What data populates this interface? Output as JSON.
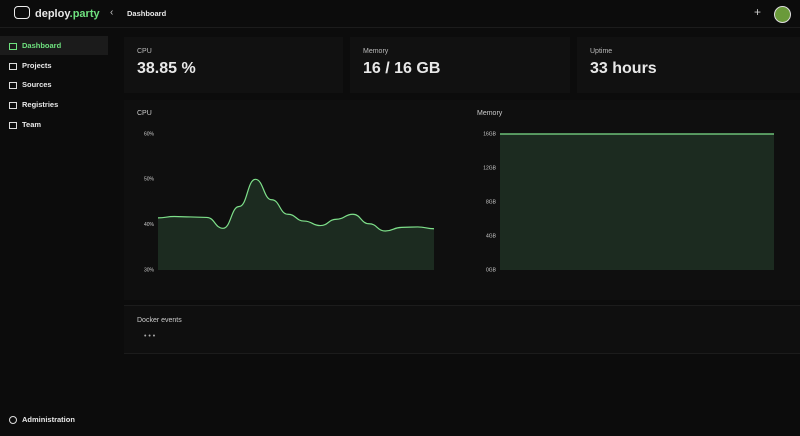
{
  "brand": {
    "name": "deploy",
    "suffix": ".party"
  },
  "header": {
    "title": "Dashboard"
  },
  "nav": [
    "Dashboard",
    "Projects",
    "Sources",
    "Registries",
    "Team"
  ],
  "footer_nav": "Administration",
  "stats": [
    {
      "label": "CPU",
      "value": "38.85 %"
    },
    {
      "label": "Memory",
      "value": "16 / 16 GB"
    },
    {
      "label": "Uptime",
      "value": "33 hours"
    }
  ],
  "events": {
    "title": "Docker events",
    "body": "• • •"
  },
  "chart_data": [
    {
      "type": "area",
      "title": "CPU",
      "color": "#7ee08a",
      "fill": "#1c2b20",
      "values": [
        41.5,
        41.8,
        41.7,
        41.6,
        39.2,
        44,
        50,
        45.5,
        42.3,
        40.8,
        39.8,
        41.2,
        42.3,
        40.2,
        38.6,
        39.4,
        39.5,
        39.1
      ],
      "ylim": [
        30,
        60
      ],
      "yticks": [
        {
          "value": 30,
          "label": "30%"
        },
        {
          "value": 40,
          "label": "40%"
        },
        {
          "value": 50,
          "label": "50%"
        },
        {
          "value": 60,
          "label": "60%"
        }
      ]
    },
    {
      "type": "area",
      "title": "Memory",
      "color": "#7ee08a",
      "fill": "#1c2b20",
      "values": [
        16,
        16,
        16,
        16,
        16,
        16,
        16,
        16,
        16,
        16
      ],
      "ylim": [
        0,
        16
      ],
      "yticks": [
        {
          "value": 0,
          "label": "0GB"
        },
        {
          "value": 4,
          "label": "4GB"
        },
        {
          "value": 8,
          "label": "8GB"
        },
        {
          "value": 12,
          "label": "12GB"
        },
        {
          "value": 16,
          "label": "16GB"
        }
      ]
    }
  ]
}
